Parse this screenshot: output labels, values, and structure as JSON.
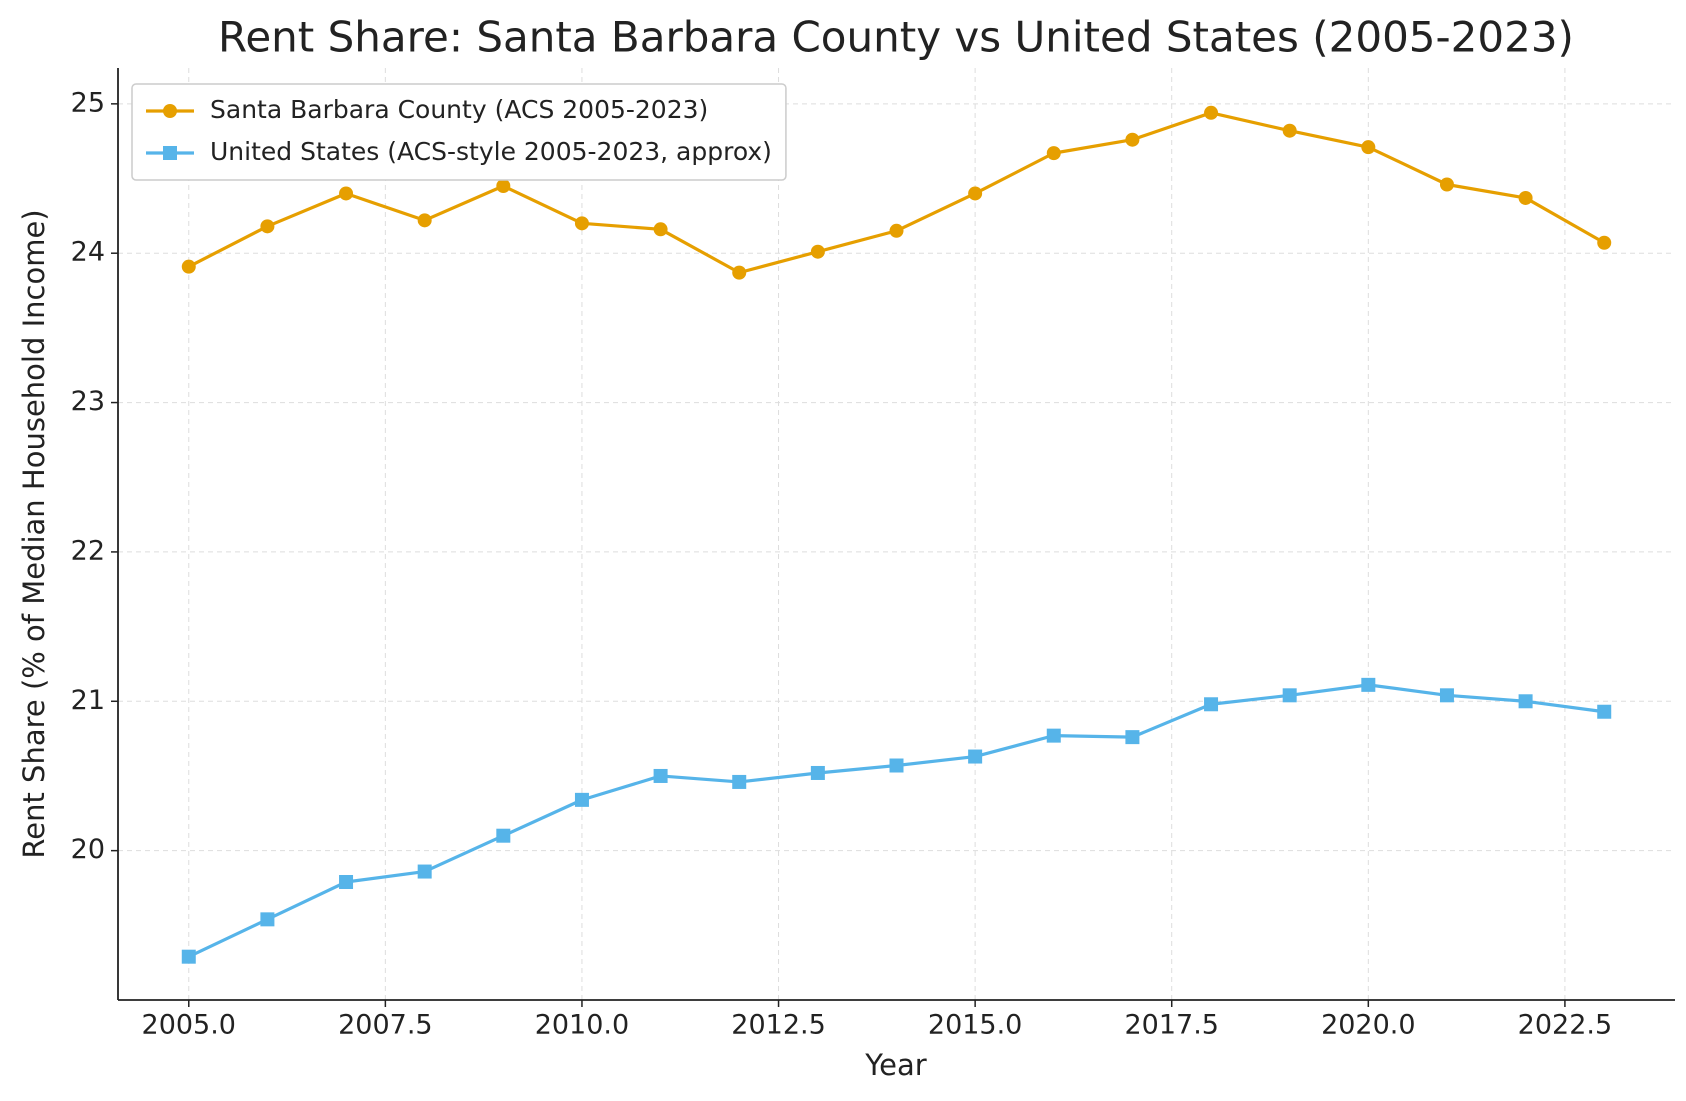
{
  "chart_data": {
    "type": "line",
    "title": "Rent Share: Santa Barbara County vs United States (2005-2023)",
    "xlabel": "Year",
    "ylabel": "Rent Share (% of Median Household Income)",
    "x": [
      2005,
      2006,
      2007,
      2008,
      2009,
      2010,
      2011,
      2012,
      2013,
      2014,
      2015,
      2016,
      2017,
      2018,
      2019,
      2020,
      2021,
      2022,
      2023
    ],
    "series": [
      {
        "name": "Santa Barbara County (ACS 2005-2023)",
        "color": "#e69f00",
        "marker": "circle",
        "values": [
          23.91,
          24.18,
          24.4,
          24.22,
          24.45,
          24.2,
          24.16,
          23.87,
          24.01,
          24.15,
          24.4,
          24.67,
          24.76,
          24.94,
          24.82,
          24.71,
          24.46,
          24.37,
          24.07
        ]
      },
      {
        "name": "United States (ACS-style 2005-2023, approx)",
        "color": "#56b4e9",
        "marker": "square",
        "values": [
          19.29,
          19.54,
          19.79,
          19.86,
          20.1,
          20.34,
          20.5,
          20.46,
          20.52,
          20.57,
          20.63,
          20.77,
          20.76,
          20.98,
          21.04,
          21.11,
          21.04,
          21.0,
          20.93
        ]
      }
    ],
    "xlim": [
      2004.1,
      2023.9
    ],
    "xticks": [
      {
        "value": 2005,
        "label": "2005.0"
      },
      {
        "value": 2007.5,
        "label": "2007.5"
      },
      {
        "value": 2010,
        "label": "2010.0"
      },
      {
        "value": 2012.5,
        "label": "2012.5"
      },
      {
        "value": 2015,
        "label": "2015.0"
      },
      {
        "value": 2017.5,
        "label": "2017.5"
      },
      {
        "value": 2020,
        "label": "2020.0"
      },
      {
        "value": 2022.5,
        "label": "2022.5"
      }
    ],
    "ylim": [
      19.0,
      25.24
    ],
    "yticks": [
      20,
      21,
      22,
      23,
      24,
      25
    ],
    "grid": true,
    "legend": "upper left"
  }
}
